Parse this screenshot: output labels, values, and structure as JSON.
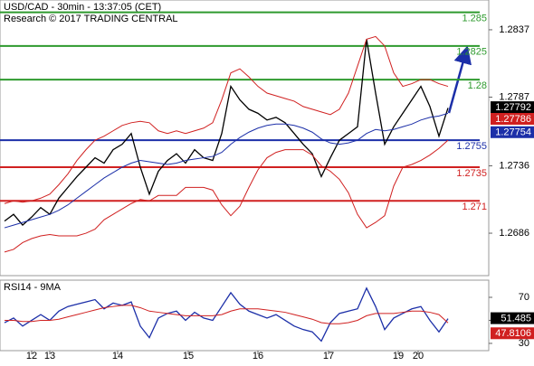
{
  "chart_data": [
    {
      "type": "line",
      "title": "USD/CAD - 30min - 13:37:05 (CET)",
      "subtitle": "Research © 2017 TRADING CENTRAL",
      "xlim": [
        0,
        49
      ],
      "ylim": [
        1.26545,
        1.28591
      ],
      "yticks": [
        1.2837,
        1.2787,
        1.2736,
        1.2686
      ],
      "series": [
        {
          "name": "Price",
          "color": "#000000",
          "values": [
            1.2695,
            1.27,
            1.2692,
            1.2698,
            1.2705,
            1.27,
            1.2712,
            1.272,
            1.2728,
            1.2735,
            1.2742,
            1.2738,
            1.2748,
            1.2752,
            1.276,
            1.2735,
            1.2715,
            1.2732,
            1.274,
            1.2745,
            1.2738,
            1.2748,
            1.2742,
            1.274,
            1.276,
            1.2795,
            1.2785,
            1.2778,
            1.2775,
            1.277,
            1.2772,
            1.2768,
            1.276,
            1.2752,
            1.2745,
            1.2728,
            1.2742,
            1.2755,
            1.276,
            1.2765,
            1.283,
            1.279,
            1.2752,
            1.2765,
            1.2775,
            1.2785,
            1.2795,
            1.278,
            1.2758,
            1.2779
          ]
        },
        {
          "name": "MA",
          "color": "#1c2fa8",
          "values": [
            1.269,
            1.2692,
            1.2694,
            1.2696,
            1.2698,
            1.27,
            1.2703,
            1.2707,
            1.2712,
            1.2717,
            1.2722,
            1.2727,
            1.2731,
            1.2735,
            1.2738,
            1.274,
            1.2739,
            1.2738,
            1.2737,
            1.2738,
            1.274,
            1.2741,
            1.2742,
            1.2743,
            1.2746,
            1.2752,
            1.2757,
            1.2761,
            1.2764,
            1.2766,
            1.2767,
            1.2767,
            1.2766,
            1.2764,
            1.2761,
            1.2756,
            1.2753,
            1.2752,
            1.2753,
            1.2755,
            1.276,
            1.2763,
            1.2762,
            1.2763,
            1.2765,
            1.2767,
            1.277,
            1.2772,
            1.2773,
            1.2775
          ]
        },
        {
          "name": "Upper band",
          "color": "#d02020",
          "values": [
            1.2708,
            1.271,
            1.2709,
            1.271,
            1.2712,
            1.2715,
            1.2722,
            1.273,
            1.274,
            1.2748,
            1.2755,
            1.2758,
            1.2762,
            1.2766,
            1.2768,
            1.2769,
            1.2768,
            1.2762,
            1.276,
            1.2762,
            1.276,
            1.2762,
            1.2764,
            1.2768,
            1.2785,
            1.2805,
            1.2808,
            1.2802,
            1.2795,
            1.279,
            1.2788,
            1.2786,
            1.2784,
            1.278,
            1.2778,
            1.2776,
            1.2774,
            1.2778,
            1.279,
            1.281,
            1.283,
            1.2832,
            1.2825,
            1.2805,
            1.2795,
            1.2797,
            1.28,
            1.28,
            1.2797,
            1.2795
          ]
        },
        {
          "name": "Lower band",
          "color": "#d02020",
          "values": [
            1.2672,
            1.2674,
            1.2679,
            1.2682,
            1.2684,
            1.2685,
            1.2684,
            1.2684,
            1.2684,
            1.2686,
            1.2689,
            1.2696,
            1.27,
            1.2704,
            1.2708,
            1.2711,
            1.271,
            1.2714,
            1.2714,
            1.2714,
            1.272,
            1.272,
            1.272,
            1.2718,
            1.2707,
            1.2699,
            1.2706,
            1.272,
            1.2733,
            1.2742,
            1.2746,
            1.2748,
            1.2748,
            1.2748,
            1.2744,
            1.2736,
            1.2732,
            1.2726,
            1.2716,
            1.27,
            1.269,
            1.2694,
            1.2699,
            1.2721,
            1.2735,
            1.2737,
            1.274,
            1.2744,
            1.2749,
            1.2755
          ]
        }
      ],
      "levels": [
        {
          "value": 1.285,
          "color": "#2e9a2e"
        },
        {
          "value": 1.2825,
          "color": "#2e9a2e"
        },
        {
          "value": 1.28,
          "color": "#2e9a2e"
        },
        {
          "value": 1.2755,
          "color": "#1c2fa8"
        },
        {
          "value": 1.2735,
          "color": "#d02020"
        },
        {
          "value": 1.271,
          "color": "#d02020"
        }
      ],
      "price_tags": [
        {
          "value": 1.27792,
          "color": "#000000"
        },
        {
          "value": 1.27786,
          "color": "#d02020"
        },
        {
          "value": 1.27754,
          "color": "#1c2fa8"
        }
      ]
    },
    {
      "type": "line",
      "title": "RSI14 - 9MA",
      "xlim": [
        0,
        49
      ],
      "ylim": [
        23.7,
        84.9
      ],
      "yticks": [
        70,
        50,
        30
      ],
      "xticks": [
        {
          "value": 3,
          "label": "12"
        },
        {
          "value": 5,
          "label": "13"
        },
        {
          "value": 12.5,
          "label": "14"
        },
        {
          "value": 20.3,
          "label": "15"
        },
        {
          "value": 28,
          "label": "16"
        },
        {
          "value": 35.8,
          "label": "17"
        },
        {
          "value": 43.5,
          "label": "19"
        },
        {
          "value": 45.7,
          "label": "20"
        }
      ],
      "series": [
        {
          "name": "RSI",
          "color": "#1c2fa8",
          "values": [
            48,
            52,
            45,
            50,
            55,
            50,
            58,
            62,
            64,
            66,
            68,
            60,
            65,
            63,
            66,
            45,
            35,
            52,
            56,
            58,
            50,
            57,
            52,
            50,
            62,
            74,
            64,
            58,
            55,
            52,
            55,
            50,
            45,
            42,
            40,
            32,
            48,
            56,
            58,
            60,
            78,
            62,
            42,
            52,
            56,
            60,
            62,
            50,
            40,
            51.485
          ]
        },
        {
          "name": "RSI MA",
          "color": "#d02020",
          "values": [
            50,
            50,
            49,
            49,
            50,
            50,
            51,
            53,
            55,
            57,
            59,
            61,
            62,
            63,
            63,
            61,
            58,
            57,
            56,
            55,
            54,
            54,
            54,
            54,
            55,
            58,
            60,
            60,
            60,
            59,
            58,
            57,
            55,
            53,
            51,
            48,
            47,
            47,
            48,
            50,
            54,
            56,
            56,
            56,
            57,
            58,
            58,
            57,
            55,
            47.8106
          ]
        }
      ],
      "price_tags": [
        {
          "value": 51.485,
          "color": "#000000"
        },
        {
          "value": 47.8106,
          "color": "#d02020"
        }
      ]
    }
  ]
}
